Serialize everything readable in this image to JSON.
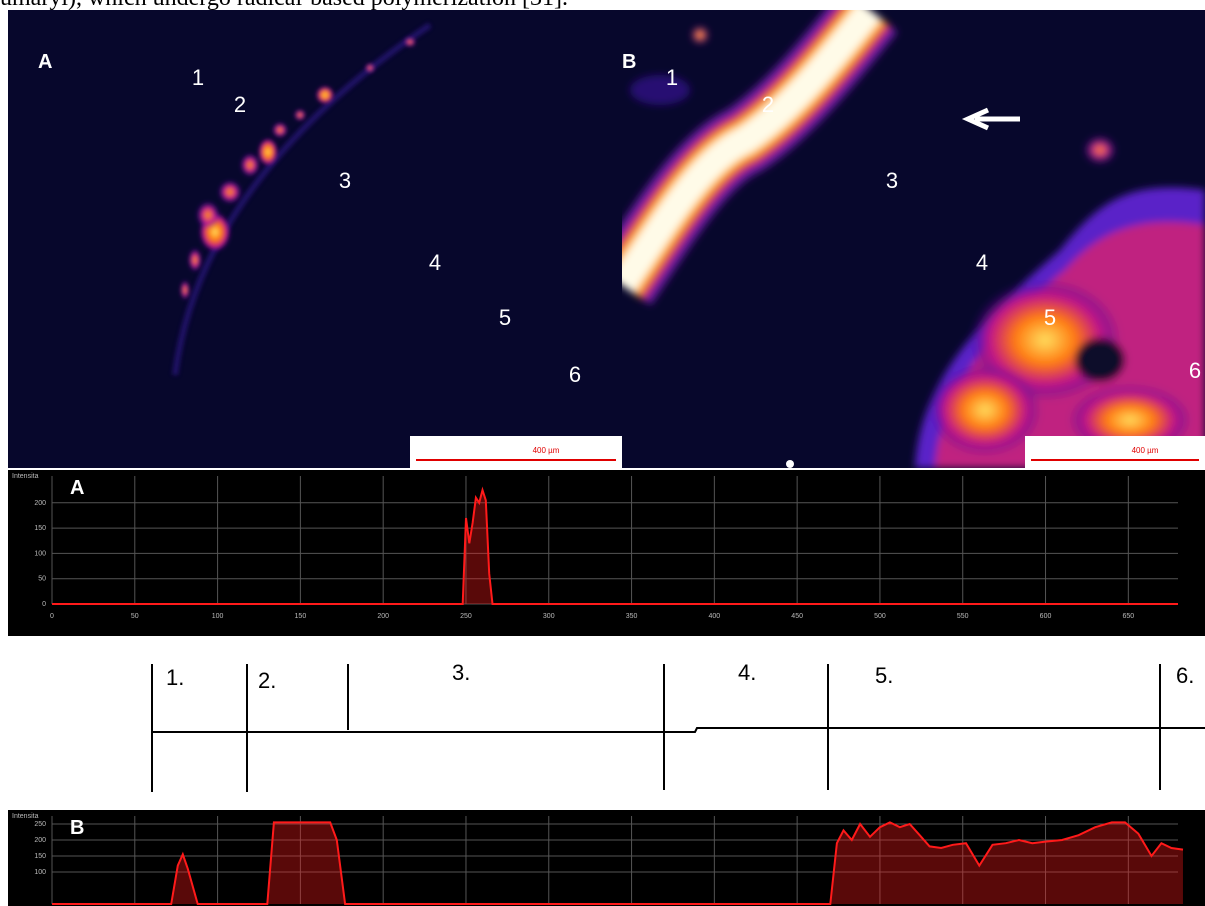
{
  "caption_fragment": "umaryl), which undergo radical-based polymerization [31].",
  "panels": [
    {
      "label": "A",
      "regions": [
        "1",
        "2",
        "3",
        "4",
        "5",
        "6"
      ],
      "scale_bar": "400 µm"
    },
    {
      "label": "B",
      "regions": [
        "1",
        "2",
        "3",
        "4",
        "5",
        "6"
      ],
      "scale_bar": "400 µm"
    }
  ],
  "profiles": [
    {
      "label": "A",
      "axis_title": "Intensita",
      "x": [
        0,
        248,
        250,
        252,
        254,
        256,
        258,
        260,
        262,
        264,
        266,
        680
      ],
      "values": [
        0,
        0,
        170,
        120,
        160,
        210,
        200,
        225,
        205,
        60,
        0,
        0
      ],
      "xlim": [
        0,
        680
      ],
      "ylim": [
        0,
        250
      ],
      "xticks": [
        0,
        50,
        100,
        150,
        200,
        250,
        300,
        350,
        400,
        450,
        500,
        550,
        600,
        650
      ],
      "yticks": [
        0,
        50,
        100,
        150,
        200
      ],
      "color": "#ff1a1a"
    },
    {
      "label": "B",
      "axis_title": "Intensita",
      "x": [
        0,
        72,
        76,
        79,
        82,
        88,
        130,
        134,
        137,
        168,
        172,
        177,
        470,
        474,
        478,
        483,
        488,
        494,
        500,
        506,
        512,
        518,
        524,
        530,
        537,
        544,
        552,
        560,
        568,
        576,
        584,
        592,
        600,
        610,
        620,
        630,
        640,
        648,
        656,
        664,
        670,
        676,
        683
      ],
      "values": [
        0,
        0,
        120,
        155,
        110,
        0,
        0,
        255,
        255,
        255,
        200,
        0,
        0,
        190,
        230,
        200,
        250,
        210,
        240,
        255,
        240,
        250,
        215,
        180,
        175,
        185,
        190,
        120,
        185,
        190,
        200,
        190,
        195,
        200,
        215,
        240,
        255,
        255,
        220,
        150,
        190,
        175,
        170
      ],
      "xlim": [
        0,
        680
      ],
      "ylim": [
        0,
        250
      ],
      "yticks": [
        100,
        150,
        200,
        250
      ],
      "color": "#ff1a1a"
    }
  ],
  "zones": [
    "1.",
    "2.",
    "3.",
    "4.",
    "5.",
    "6."
  ]
}
